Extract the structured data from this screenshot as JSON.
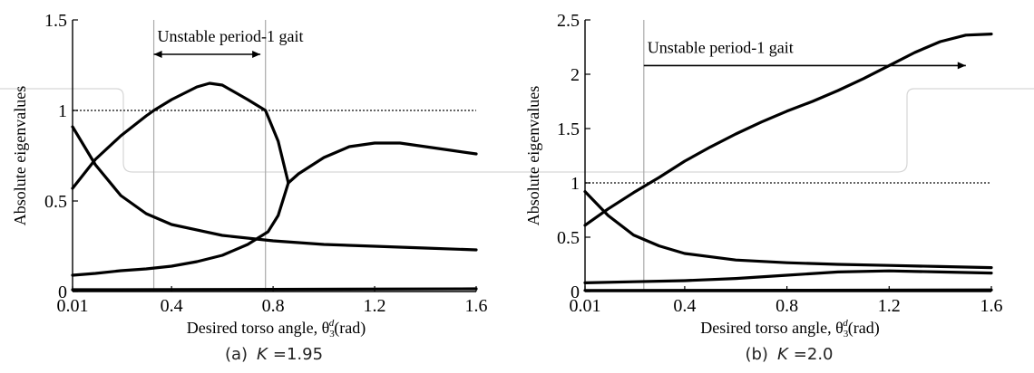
{
  "chart_data": [
    {
      "type": "line",
      "id": "a",
      "caption_prefix": "(a)",
      "caption_symbol": "K",
      "caption_value": "=1.95",
      "xlabel_text": "Desired torso angle, θ",
      "xlabel_sub": "3",
      "xlabel_sup": "d",
      "xlabel_unit": "(rad)",
      "ylabel": "Absolute eigenvalues",
      "xlim": [
        0.01,
        1.6
      ],
      "ylim": [
        0,
        1.5
      ],
      "xticks": [
        0.01,
        0.4,
        0.8,
        1.2,
        1.6
      ],
      "xtick_labels": [
        "0.01",
        "0.4",
        "0.8",
        "1.2",
        "1.6"
      ],
      "yticks": [
        0,
        0.5,
        1,
        1.5
      ],
      "ytick_labels": [
        "0",
        "0.5",
        "1",
        "1.5"
      ],
      "threshold": 1,
      "unstable_range": [
        0.33,
        0.77
      ],
      "annotation": "Unstable period-1 gait",
      "annotation_arrow": [
        0.33,
        0.75
      ],
      "annotation_arrow_y": 1.31,
      "annotation_arrow_style": "both",
      "series": [
        {
          "x": [
            0.01,
            0.1,
            0.2,
            0.3,
            0.33,
            0.4,
            0.5,
            0.55,
            0.6,
            0.7,
            0.77,
            0.82,
            0.86
          ],
          "values": [
            0.57,
            0.73,
            0.86,
            0.97,
            1.0,
            1.06,
            1.13,
            1.15,
            1.14,
            1.06,
            1.0,
            0.83,
            0.6
          ]
        },
        {
          "x": [
            0.01,
            0.1,
            0.2,
            0.3,
            0.4,
            0.5,
            0.6,
            0.7,
            0.78,
            0.82,
            0.86
          ],
          "values": [
            0.09,
            0.1,
            0.115,
            0.125,
            0.14,
            0.165,
            0.2,
            0.26,
            0.33,
            0.42,
            0.6
          ]
        },
        {
          "x": [
            0.86,
            0.9,
            1.0,
            1.1,
            1.2,
            1.3,
            1.4,
            1.5,
            1.6
          ],
          "values": [
            0.6,
            0.65,
            0.74,
            0.8,
            0.82,
            0.82,
            0.8,
            0.78,
            0.76
          ]
        },
        {
          "x": [
            0.01,
            0.1,
            0.2,
            0.3,
            0.4,
            0.6,
            0.8,
            1.0,
            1.2,
            1.4,
            1.6
          ],
          "values": [
            0.91,
            0.7,
            0.53,
            0.43,
            0.37,
            0.31,
            0.28,
            0.26,
            0.25,
            0.24,
            0.23
          ]
        },
        {
          "x": [
            0.01,
            0.8,
            1.6
          ],
          "values": [
            0.01,
            0.012,
            0.015
          ]
        }
      ]
    },
    {
      "type": "line",
      "id": "b",
      "caption_prefix": "(b)",
      "caption_symbol": "K",
      "caption_value": "=2.0",
      "xlabel_text": "Desired torso angle, θ",
      "xlabel_sub": "3",
      "xlabel_sup": "d",
      "xlabel_unit": "(rad)",
      "ylabel": "Absolute eigenvalues",
      "xlim": [
        0.01,
        1.6
      ],
      "ylim": [
        0,
        2.5
      ],
      "xticks": [
        0.01,
        0.4,
        0.8,
        1.2,
        1.6
      ],
      "xtick_labels": [
        "0.01",
        "0.4",
        "0.8",
        "1.2",
        "1.6"
      ],
      "yticks": [
        0,
        0.5,
        1,
        1.5,
        2,
        2.5
      ],
      "ytick_labels": [
        "0",
        "0.5",
        "1",
        "1.5",
        "2",
        "2.5"
      ],
      "threshold": 1,
      "unstable_range": [
        0.24,
        1.6
      ],
      "annotation": "Unstable period-1 gait",
      "annotation_arrow": [
        0.24,
        1.5
      ],
      "annotation_arrow_y": 2.08,
      "annotation_arrow_style": "end",
      "series": [
        {
          "x": [
            0.01,
            0.1,
            0.2,
            0.3,
            0.4,
            0.5,
            0.6,
            0.7,
            0.8,
            0.9,
            1.0,
            1.1,
            1.2,
            1.3,
            1.4,
            1.5,
            1.6
          ],
          "values": [
            0.61,
            0.76,
            0.91,
            1.05,
            1.2,
            1.33,
            1.45,
            1.56,
            1.66,
            1.75,
            1.85,
            1.96,
            2.08,
            2.2,
            2.3,
            2.36,
            2.37
          ]
        },
        {
          "x": [
            0.01,
            0.1,
            0.2,
            0.3,
            0.4,
            0.6,
            0.8,
            1.0,
            1.2,
            1.4,
            1.6
          ],
          "values": [
            0.92,
            0.7,
            0.52,
            0.42,
            0.35,
            0.29,
            0.265,
            0.25,
            0.24,
            0.23,
            0.22
          ]
        },
        {
          "x": [
            0.01,
            0.2,
            0.4,
            0.6,
            0.8,
            1.0,
            1.2,
            1.4,
            1.6
          ],
          "values": [
            0.08,
            0.09,
            0.1,
            0.12,
            0.15,
            0.18,
            0.19,
            0.18,
            0.17
          ]
        },
        {
          "x": [
            0.01,
            0.8,
            1.6
          ],
          "values": [
            0.01,
            0.012,
            0.015
          ]
        }
      ]
    }
  ]
}
